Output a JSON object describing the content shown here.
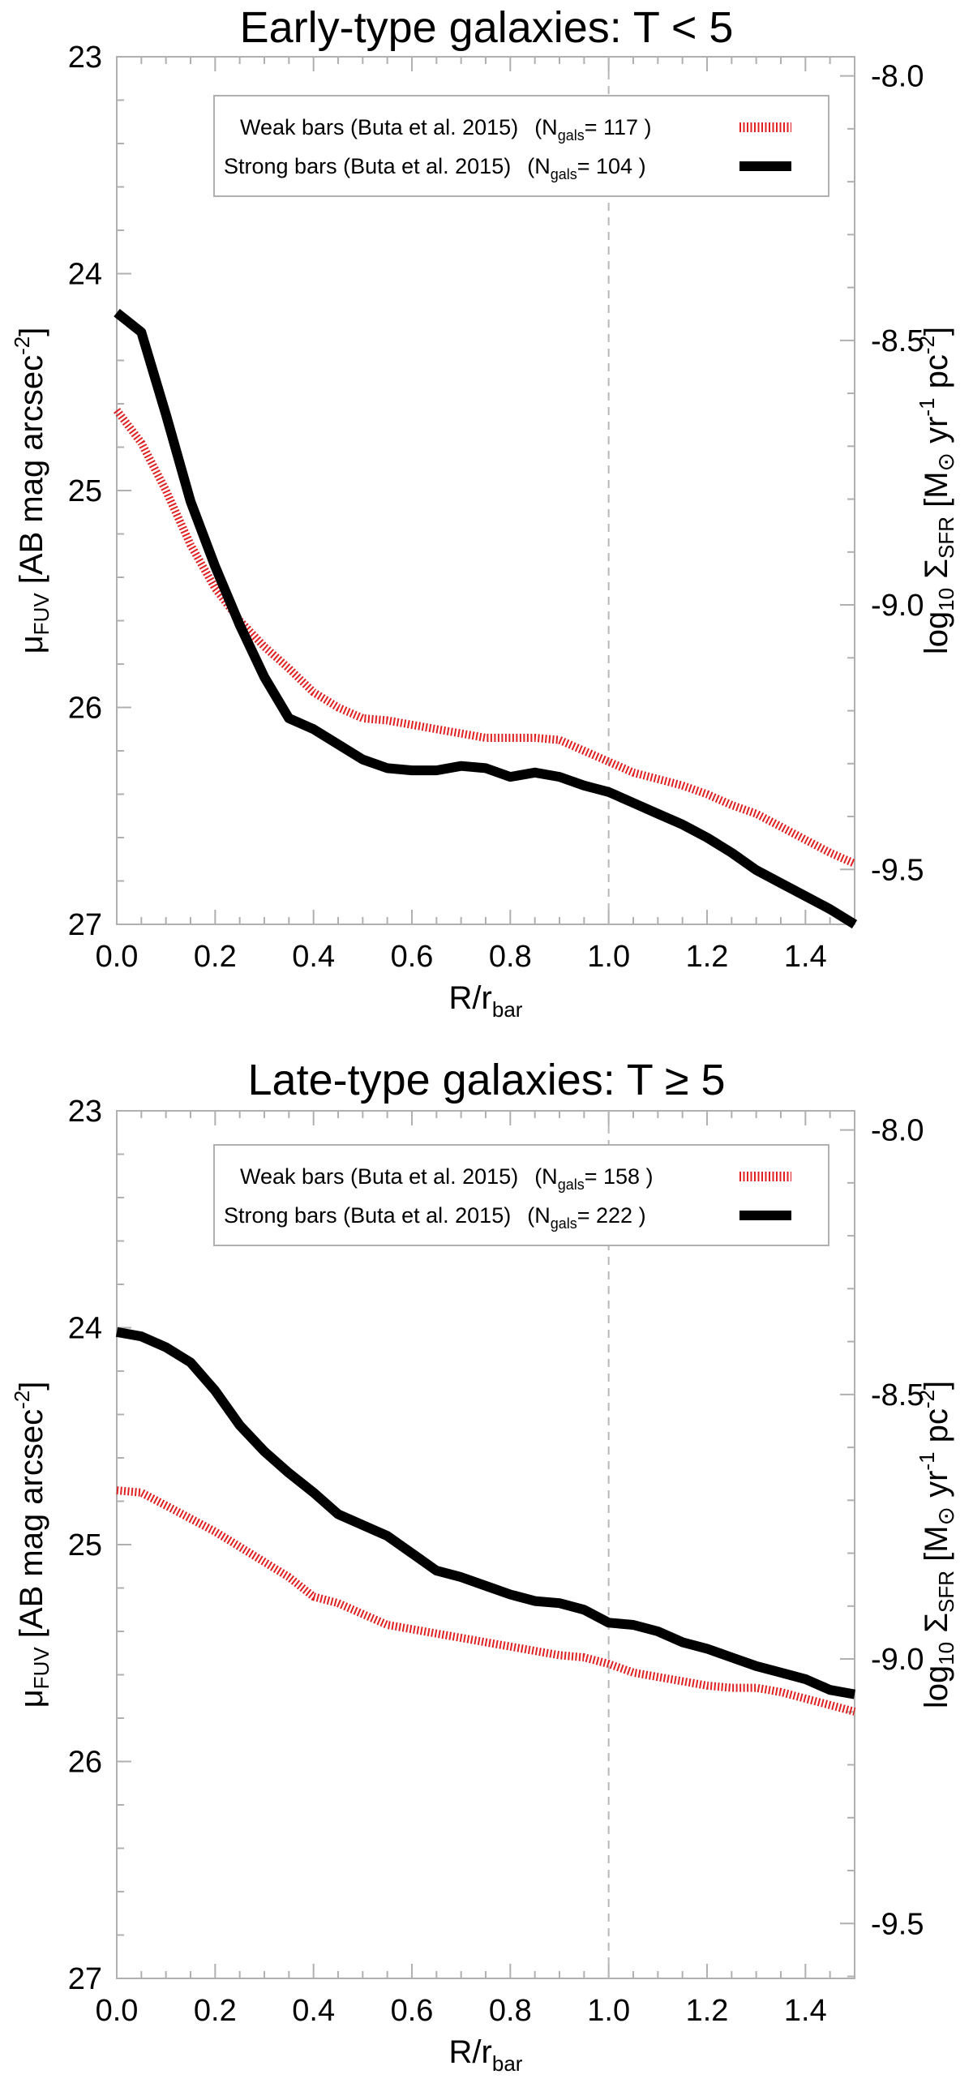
{
  "chart_data": [
    {
      "type": "line",
      "title": "Early-type galaxies: T < 5",
      "xlabel": "R/r_bar",
      "xlabel_main": "R/r",
      "xlabel_sub": "bar",
      "ylabel": "μ_FUV [AB mag arcsec^-2]",
      "ylabel_main": "μ",
      "ylabel_sub": "FUV",
      "ylabel_mid": " [AB mag arcsec",
      "ylabel_sup": "-2",
      "ylabel_end": "]",
      "y2label": "log10 Σ_SFR [M⊙ yr^-1 pc^-2]",
      "y2label_parts": {
        "log": "log",
        "log_sub": "10",
        "sigma": " Σ",
        "sigma_sub": "SFR",
        "units_a": " [M",
        "sun": "⊙",
        "units_b": " yr",
        "sup1": "-1",
        "units_c": " pc",
        "sup2": "-2",
        "close": "]"
      },
      "xlim": [
        0.0,
        1.5
      ],
      "ylim": [
        27,
        23
      ],
      "y2lim": [
        -9.6038,
        -7.9638
      ],
      "xticks": [
        "0.0",
        "0.2",
        "0.4",
        "0.6",
        "0.8",
        "1.0",
        "1.2",
        "1.4"
      ],
      "yticks": [
        "23",
        "24",
        "25",
        "26",
        "27"
      ],
      "y2ticks": [
        "-8.0",
        "-8.5",
        "-9.0",
        "-9.5"
      ],
      "vline_x": 1.0,
      "legend": [
        {
          "label": "Weak bars (Buta et al. 2015)",
          "n_main": "(N",
          "n_sub": "gals",
          "n_val": "= 117 )",
          "color": "#e02020",
          "style": "dotted"
        },
        {
          "label": "Strong bars (Buta et al. 2015)",
          "n_main": "(N",
          "n_sub": "gals",
          "n_val": "= 104 )",
          "color": "#000000",
          "style": "solid"
        }
      ],
      "series": [
        {
          "name": "Weak bars",
          "color": "#e02020",
          "x": [
            0.0,
            0.05,
            0.1,
            0.15,
            0.2,
            0.25,
            0.3,
            0.35,
            0.4,
            0.45,
            0.5,
            0.55,
            0.6,
            0.65,
            0.7,
            0.75,
            0.8,
            0.85,
            0.9,
            0.95,
            1.0,
            1.05,
            1.1,
            1.15,
            1.2,
            1.25,
            1.3,
            1.35,
            1.4,
            1.45,
            1.5
          ],
          "y": [
            24.63,
            24.78,
            25.0,
            25.25,
            25.45,
            25.6,
            25.72,
            25.82,
            25.93,
            26.0,
            26.05,
            26.06,
            26.08,
            26.1,
            26.12,
            26.14,
            26.14,
            26.14,
            26.15,
            26.2,
            26.25,
            26.3,
            26.33,
            26.36,
            26.4,
            26.45,
            26.49,
            26.55,
            26.61,
            26.67,
            26.72
          ]
        },
        {
          "name": "Strong bars",
          "color": "#000000",
          "x": [
            0.0,
            0.05,
            0.1,
            0.15,
            0.2,
            0.25,
            0.3,
            0.35,
            0.4,
            0.45,
            0.5,
            0.55,
            0.6,
            0.65,
            0.7,
            0.75,
            0.8,
            0.85,
            0.9,
            0.95,
            1.0,
            1.05,
            1.1,
            1.15,
            1.2,
            1.25,
            1.3,
            1.35,
            1.4,
            1.45,
            1.5
          ],
          "y": [
            24.18,
            24.27,
            24.65,
            25.05,
            25.35,
            25.62,
            25.86,
            26.05,
            26.1,
            26.17,
            26.24,
            26.28,
            26.29,
            26.29,
            26.27,
            26.28,
            26.32,
            26.3,
            26.32,
            26.36,
            26.39,
            26.44,
            26.49,
            26.54,
            26.6,
            26.67,
            26.75,
            26.81,
            26.87,
            26.93,
            27.0
          ]
        }
      ]
    },
    {
      "type": "line",
      "title": "Late-type galaxies: T ≥ 5",
      "xlabel": "R/r_bar",
      "xlabel_main": "R/r",
      "xlabel_sub": "bar",
      "ylabel": "μ_FUV [AB mag arcsec^-2]",
      "ylabel_main": "μ",
      "ylabel_sub": "FUV",
      "ylabel_mid": " [AB mag arcsec",
      "ylabel_sup": "-2",
      "ylabel_end": "]",
      "y2label": "log10 Σ_SFR [M⊙ yr^-1 pc^-2]",
      "y2label_parts": {
        "log": "log",
        "log_sub": "10",
        "sigma": " Σ",
        "sigma_sub": "SFR",
        "units_a": " [M",
        "sun": "⊙",
        "units_b": " yr",
        "sup1": "-1",
        "units_c": " pc",
        "sup2": "-2",
        "close": "]"
      },
      "xlim": [
        0.0,
        1.5
      ],
      "ylim": [
        27,
        23
      ],
      "y2lim": [
        -9.6038,
        -7.9638
      ],
      "xticks": [
        "0.0",
        "0.2",
        "0.4",
        "0.6",
        "0.8",
        "1.0",
        "1.2",
        "1.4"
      ],
      "yticks": [
        "23",
        "24",
        "25",
        "26",
        "27"
      ],
      "y2ticks": [
        "-8.0",
        "-8.5",
        "-9.0",
        "-9.5"
      ],
      "vline_x": 1.0,
      "legend": [
        {
          "label": "Weak bars (Buta et al. 2015)",
          "n_main": "(N",
          "n_sub": "gals",
          "n_val": "= 158 )",
          "color": "#e02020",
          "style": "dotted"
        },
        {
          "label": "Strong bars (Buta et al. 2015)",
          "n_main": "(N",
          "n_sub": "gals",
          "n_val": "= 222 )",
          "color": "#000000",
          "style": "solid"
        }
      ],
      "series": [
        {
          "name": "Weak bars",
          "color": "#e02020",
          "x": [
            0.0,
            0.05,
            0.1,
            0.15,
            0.2,
            0.25,
            0.3,
            0.35,
            0.4,
            0.45,
            0.5,
            0.55,
            0.6,
            0.65,
            0.7,
            0.75,
            0.8,
            0.85,
            0.9,
            0.95,
            1.0,
            1.05,
            1.1,
            1.15,
            1.2,
            1.25,
            1.3,
            1.35,
            1.4,
            1.45,
            1.5
          ],
          "y": [
            24.75,
            24.76,
            24.82,
            24.88,
            24.94,
            25.01,
            25.08,
            25.15,
            25.24,
            25.27,
            25.32,
            25.37,
            25.39,
            25.41,
            25.43,
            25.45,
            25.47,
            25.49,
            25.51,
            25.52,
            25.55,
            25.59,
            25.61,
            25.63,
            25.65,
            25.66,
            25.66,
            25.68,
            25.71,
            25.74,
            25.77
          ]
        },
        {
          "name": "Strong bars",
          "color": "#000000",
          "x": [
            0.0,
            0.05,
            0.1,
            0.15,
            0.2,
            0.25,
            0.3,
            0.35,
            0.4,
            0.45,
            0.5,
            0.55,
            0.6,
            0.65,
            0.7,
            0.75,
            0.8,
            0.85,
            0.9,
            0.95,
            1.0,
            1.05,
            1.1,
            1.15,
            1.2,
            1.25,
            1.3,
            1.35,
            1.4,
            1.45,
            1.5
          ],
          "y": [
            24.02,
            24.04,
            24.09,
            24.16,
            24.29,
            24.45,
            24.57,
            24.67,
            24.76,
            24.86,
            24.91,
            24.96,
            25.04,
            25.12,
            25.15,
            25.19,
            25.23,
            25.26,
            25.27,
            25.3,
            25.36,
            25.37,
            25.4,
            25.45,
            25.48,
            25.52,
            25.56,
            25.59,
            25.62,
            25.67,
            25.69
          ]
        }
      ]
    }
  ]
}
